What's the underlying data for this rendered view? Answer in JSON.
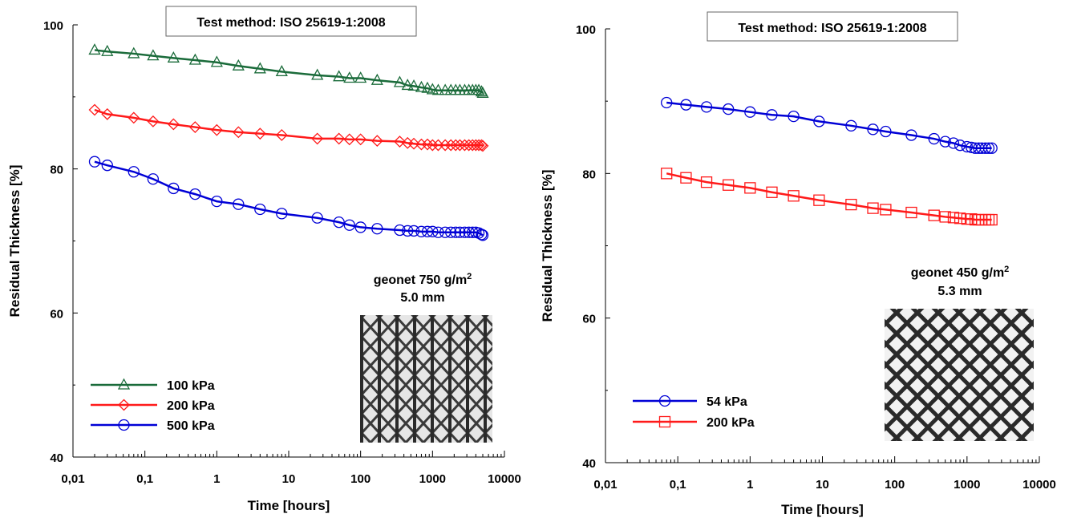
{
  "chart_data": [
    {
      "type": "line",
      "title": "Test method: ISO 25619-1:2008",
      "xlabel": "Time [hours]",
      "ylabel": "Residual Thickness [%]",
      "xscale": "log",
      "xlim": [
        0.01,
        10000
      ],
      "ylim": [
        40,
        100
      ],
      "xticks": [
        "0,01",
        "0,1",
        "1",
        "10",
        "100",
        "1000",
        "10000"
      ],
      "yticks": [
        "40",
        "60",
        "80",
        "100"
      ],
      "grid": false,
      "legend_position": "bottom-left",
      "annotation": {
        "line1": "geonet 750 g/m",
        "sup": "2",
        "line2": "5.0 mm"
      },
      "inset_image": "geonet-750-sample-photo",
      "series": [
        {
          "name": "100 kPa",
          "color": "#1a6b3a",
          "marker": "triangle",
          "x": [
            0.02,
            0.03,
            0.07,
            0.13,
            0.25,
            0.5,
            1,
            2,
            4,
            8,
            25,
            50,
            70,
            100,
            170,
            350,
            450,
            550,
            700,
            850,
            1000,
            1200,
            1500,
            1800,
            2100,
            2400,
            2800,
            3200,
            3600,
            4000,
            4400,
            4800,
            5000
          ],
          "y": [
            96.5,
            96.3,
            96.0,
            95.7,
            95.4,
            95.1,
            94.8,
            94.3,
            93.9,
            93.5,
            93.0,
            92.8,
            92.6,
            92.6,
            92.3,
            92.0,
            91.6,
            91.5,
            91.3,
            91.2,
            91.0,
            90.9,
            90.9,
            90.9,
            90.9,
            90.9,
            90.9,
            90.9,
            90.9,
            90.9,
            90.9,
            90.7,
            90.5
          ]
        },
        {
          "name": "200 kPa",
          "color": "#ff1a1a",
          "marker": "diamond",
          "x": [
            0.02,
            0.03,
            0.07,
            0.13,
            0.25,
            0.5,
            1,
            2,
            4,
            8,
            25,
            50,
            70,
            100,
            170,
            350,
            450,
            550,
            700,
            850,
            1000,
            1200,
            1500,
            1800,
            2100,
            2400,
            2800,
            3200,
            3600,
            4000,
            4400,
            4800,
            5000
          ],
          "y": [
            88.2,
            87.6,
            87.1,
            86.6,
            86.2,
            85.8,
            85.4,
            85.1,
            84.9,
            84.7,
            84.2,
            84.2,
            84.1,
            84.1,
            83.9,
            83.8,
            83.6,
            83.5,
            83.4,
            83.4,
            83.3,
            83.3,
            83.3,
            83.3,
            83.3,
            83.3,
            83.3,
            83.3,
            83.3,
            83.3,
            83.3,
            83.3,
            83.2
          ]
        },
        {
          "name": "500 kPa",
          "color": "#0000d6",
          "marker": "circle",
          "x": [
            0.02,
            0.03,
            0.07,
            0.13,
            0.25,
            0.5,
            1,
            2,
            4,
            8,
            25,
            50,
            70,
            100,
            170,
            350,
            450,
            550,
            700,
            850,
            1000,
            1200,
            1500,
            1800,
            2100,
            2400,
            2800,
            3200,
            3600,
            4000,
            4400,
            4800,
            5000
          ],
          "y": [
            81.0,
            80.5,
            79.6,
            78.6,
            77.3,
            76.5,
            75.5,
            75.1,
            74.4,
            73.8,
            73.2,
            72.6,
            72.2,
            71.9,
            71.7,
            71.5,
            71.4,
            71.4,
            71.3,
            71.3,
            71.3,
            71.2,
            71.2,
            71.2,
            71.2,
            71.2,
            71.2,
            71.2,
            71.2,
            71.2,
            71.1,
            70.9,
            70.8
          ]
        }
      ]
    },
    {
      "type": "line",
      "title": "Test method: ISO 25619-1:2008",
      "xlabel": "Time [hours]",
      "ylabel": "Residual Thickness [%]",
      "xscale": "log",
      "xlim": [
        0.01,
        10000
      ],
      "ylim": [
        40,
        100
      ],
      "xticks": [
        "0,01",
        "0,1",
        "1",
        "10",
        "100",
        "1000",
        "10000"
      ],
      "yticks": [
        "40",
        "60",
        "80",
        "100"
      ],
      "grid": false,
      "legend_position": "bottom-left",
      "annotation": {
        "line1": "geonet 450 g/m",
        "sup": "2",
        "line2": "5.3 mm"
      },
      "inset_image": "geonet-450-sample-photo",
      "series": [
        {
          "name": "54 kPa",
          "color": "#0000d6",
          "marker": "circle",
          "x": [
            0.07,
            0.13,
            0.25,
            0.5,
            1,
            2,
            4,
            9,
            25,
            50,
            75,
            170,
            350,
            500,
            650,
            800,
            1000,
            1150,
            1300,
            1450,
            1600,
            1800,
            2000,
            2200
          ],
          "y": [
            89.8,
            89.5,
            89.2,
            88.9,
            88.5,
            88.1,
            87.9,
            87.2,
            86.6,
            86.1,
            85.8,
            85.3,
            84.8,
            84.4,
            84.2,
            83.9,
            83.7,
            83.6,
            83.5,
            83.5,
            83.5,
            83.5,
            83.5,
            83.5
          ]
        },
        {
          "name": "200 kPa",
          "color": "#ff1a1a",
          "marker": "square",
          "x": [
            0.07,
            0.13,
            0.25,
            0.5,
            1,
            2,
            4,
            9,
            25,
            50,
            75,
            170,
            350,
            500,
            650,
            800,
            1000,
            1150,
            1300,
            1450,
            1600,
            1800,
            2000,
            2200
          ],
          "y": [
            80.0,
            79.4,
            78.8,
            78.4,
            78.0,
            77.4,
            76.9,
            76.3,
            75.7,
            75.2,
            75.0,
            74.6,
            74.2,
            74.0,
            73.9,
            73.8,
            73.7,
            73.7,
            73.6,
            73.6,
            73.6,
            73.6,
            73.6,
            73.6
          ]
        }
      ]
    }
  ]
}
